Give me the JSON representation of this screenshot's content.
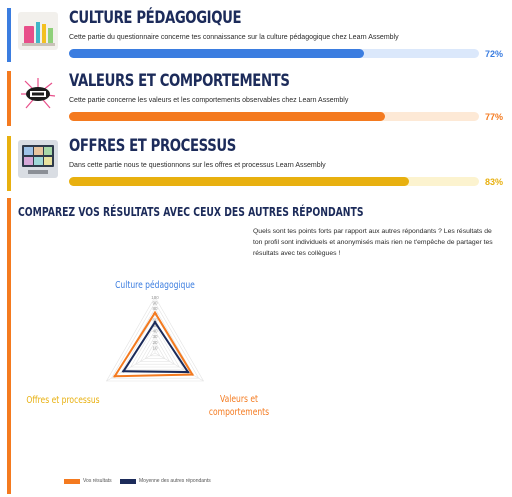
{
  "sections": [
    {
      "title": "CULTURE PÉDAGOGIQUE",
      "description": "Cette partie du questionnaire concerne tes connaissance sur la culture pédagogique chez Learn Assembly",
      "percent_label": "72%",
      "progress": 0.72,
      "accent_color": "#3b7de0",
      "track_color": "#dbe8fb",
      "thumb_icon": "stationery-icon"
    },
    {
      "title": "VALEURS ET COMPORTEMENTS",
      "description": "Cette partie concerne les valeurs et les comportements observables chez Learn Assembly",
      "percent_label": "77%",
      "progress": 0.77,
      "accent_color": "#f47a1f",
      "track_color": "#fde9d6",
      "thumb_icon": "values-illustration-icon"
    },
    {
      "title": "OFFRES ET PROCESSUS",
      "description": "Dans cette partie nous te questionnons sur les offres et processus Learn Assembly",
      "percent_label": "83%",
      "progress": 0.83,
      "accent_color": "#e8b00f",
      "track_color": "#fcf3cf",
      "thumb_icon": "computer-screen-icon"
    }
  ],
  "compare": {
    "title": "COMPAREZ VOS RÉSULTATS AVEC CEUX DES AUTRES RÉPONDANTS",
    "intro": "Quels sont tes points forts par rapport aux autres répondants ? Les résultats de ton profil sont individuels et anonymisés mais rien ne t'empêche de partager tes résultats avec tes collègues !"
  },
  "chart_data": {
    "type": "radar",
    "axes": [
      {
        "label": "Culture pédagogique",
        "color": "#3b7de0"
      },
      {
        "label": "Valeurs et comportements",
        "color": "#f47a1f"
      },
      {
        "label": "Offres et processus",
        "color": "#e8b00f"
      }
    ],
    "ticks": [
      "100",
      "90",
      "80",
      "70",
      "60",
      "50",
      "40",
      "30",
      "20",
      "10"
    ],
    "range": [
      0,
      100
    ],
    "series": [
      {
        "name": "Vos résultats",
        "color": "#f47a1f",
        "values": [
          72,
          77,
          83
        ]
      },
      {
        "name": "Moyenne des autres répondants",
        "color": "#1c2b5a",
        "values": [
          55,
          68,
          65
        ]
      }
    ],
    "legend": "bottom"
  }
}
